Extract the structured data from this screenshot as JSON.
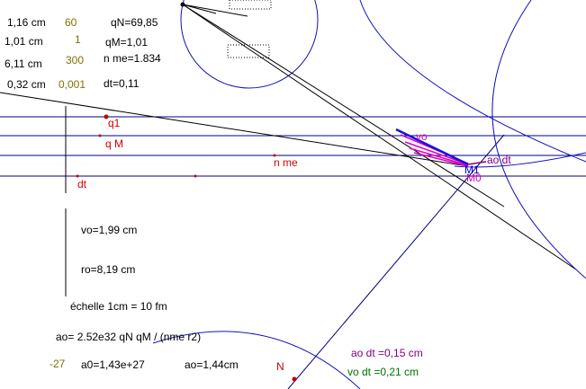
{
  "params": [
    {
      "value": "1,16  cm",
      "knob": "60",
      "result": "qN=69,85"
    },
    {
      "value": "1,01  cm",
      "knob": "1",
      "result": "qM=1,01"
    },
    {
      "value": "6,11  cm",
      "knob": "300",
      "result": "n me=1.834"
    },
    {
      "value": "0,32  cm",
      "knob": "0,001",
      "result": "dt=0,11"
    }
  ],
  "points": {
    "q1": "q1",
    "qM": "q M",
    "nme": "n me",
    "dt": "dt",
    "N": "N",
    "M0": "M0",
    "M1": "M1",
    "vo": "vo",
    "aodt": "ao dt"
  },
  "info": {
    "vo": "vo=1,99  cm",
    "ro": "ro=8,19  cm",
    "scale": "échelle 1cm =  10    fm",
    "formula": "ao= 2.52e32 qN qM / (nme r2)",
    "exponent": "-27",
    "a0": "a0=1,43e+27",
    "ao": "ao=1,44cm"
  },
  "vectors": {
    "aodt": "ao dt =0,15 cm",
    "vodt": "vo dt =0,21  cm"
  }
}
